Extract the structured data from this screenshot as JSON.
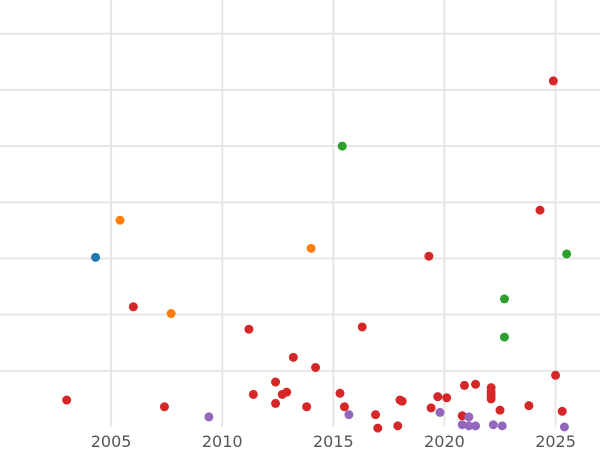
{
  "chart_data": {
    "type": "scatter",
    "title": "",
    "xlabel": "",
    "ylabel": "",
    "xlim": [
      2000,
      2027
    ],
    "ylim": [
      0,
      38
    ],
    "grid": true,
    "legend": "none",
    "x_ticks": [
      2005,
      2010,
      2015,
      2020,
      2025
    ],
    "x_tick_labels": [
      "2005",
      "2010",
      "2015",
      "2020",
      "2025"
    ],
    "y_gridlines": [
      5,
      10,
      15,
      20,
      25,
      30,
      35
    ],
    "series": [
      {
        "color": "#1f77b4",
        "points": [
          [
            2004.3,
            15.1
          ]
        ]
      },
      {
        "color": "#ff7f0e",
        "points": [
          [
            2005.4,
            18.4
          ],
          [
            2007.7,
            10.1
          ],
          [
            2014.0,
            15.9
          ]
        ]
      },
      {
        "color": "#2ca02c",
        "points": [
          [
            2015.4,
            25.0
          ],
          [
            2022.7,
            11.4
          ],
          [
            2022.7,
            8.0
          ],
          [
            2025.5,
            15.4
          ]
        ]
      },
      {
        "color": "#d62728",
        "points": [
          [
            2003.0,
            2.4
          ],
          [
            2006.0,
            10.7
          ],
          [
            2007.4,
            1.8
          ],
          [
            2011.2,
            8.7
          ],
          [
            2011.4,
            2.9
          ],
          [
            2012.4,
            4.0
          ],
          [
            2012.4,
            2.1
          ],
          [
            2012.7,
            2.9
          ],
          [
            2012.9,
            3.1
          ],
          [
            2013.2,
            6.2
          ],
          [
            2013.8,
            1.8
          ],
          [
            2014.2,
            5.3
          ],
          [
            2015.3,
            3.0
          ],
          [
            2015.5,
            1.8
          ],
          [
            2016.3,
            8.9
          ],
          [
            2016.9,
            1.1
          ],
          [
            2017.0,
            -0.1
          ],
          [
            2018.0,
            2.4
          ],
          [
            2017.9,
            0.1
          ],
          [
            2018.1,
            2.3
          ],
          [
            2019.3,
            15.2
          ],
          [
            2019.4,
            1.7
          ],
          [
            2019.7,
            2.7
          ],
          [
            2020.1,
            2.6
          ],
          [
            2020.8,
            1.0
          ],
          [
            2020.9,
            3.7
          ],
          [
            2021.4,
            3.8
          ],
          [
            2022.1,
            3.5
          ],
          [
            2022.1,
            3.1
          ],
          [
            2022.1,
            2.8
          ],
          [
            2022.1,
            2.5
          ],
          [
            2022.5,
            1.5
          ],
          [
            2023.8,
            1.9
          ],
          [
            2024.3,
            19.3
          ],
          [
            2024.9,
            30.8
          ],
          [
            2025.0,
            4.6
          ],
          [
            2025.3,
            1.4
          ]
        ]
      },
      {
        "color": "#9467bd",
        "points": [
          [
            2009.4,
            0.9
          ],
          [
            2015.7,
            1.1
          ],
          [
            2019.8,
            1.3
          ],
          [
            2020.8,
            0.2
          ],
          [
            2021.1,
            0.9
          ],
          [
            2021.1,
            0.1
          ],
          [
            2021.4,
            0.1
          ],
          [
            2022.2,
            0.2
          ],
          [
            2022.6,
            0.1
          ],
          [
            2025.4,
            0.0
          ]
        ]
      }
    ]
  }
}
